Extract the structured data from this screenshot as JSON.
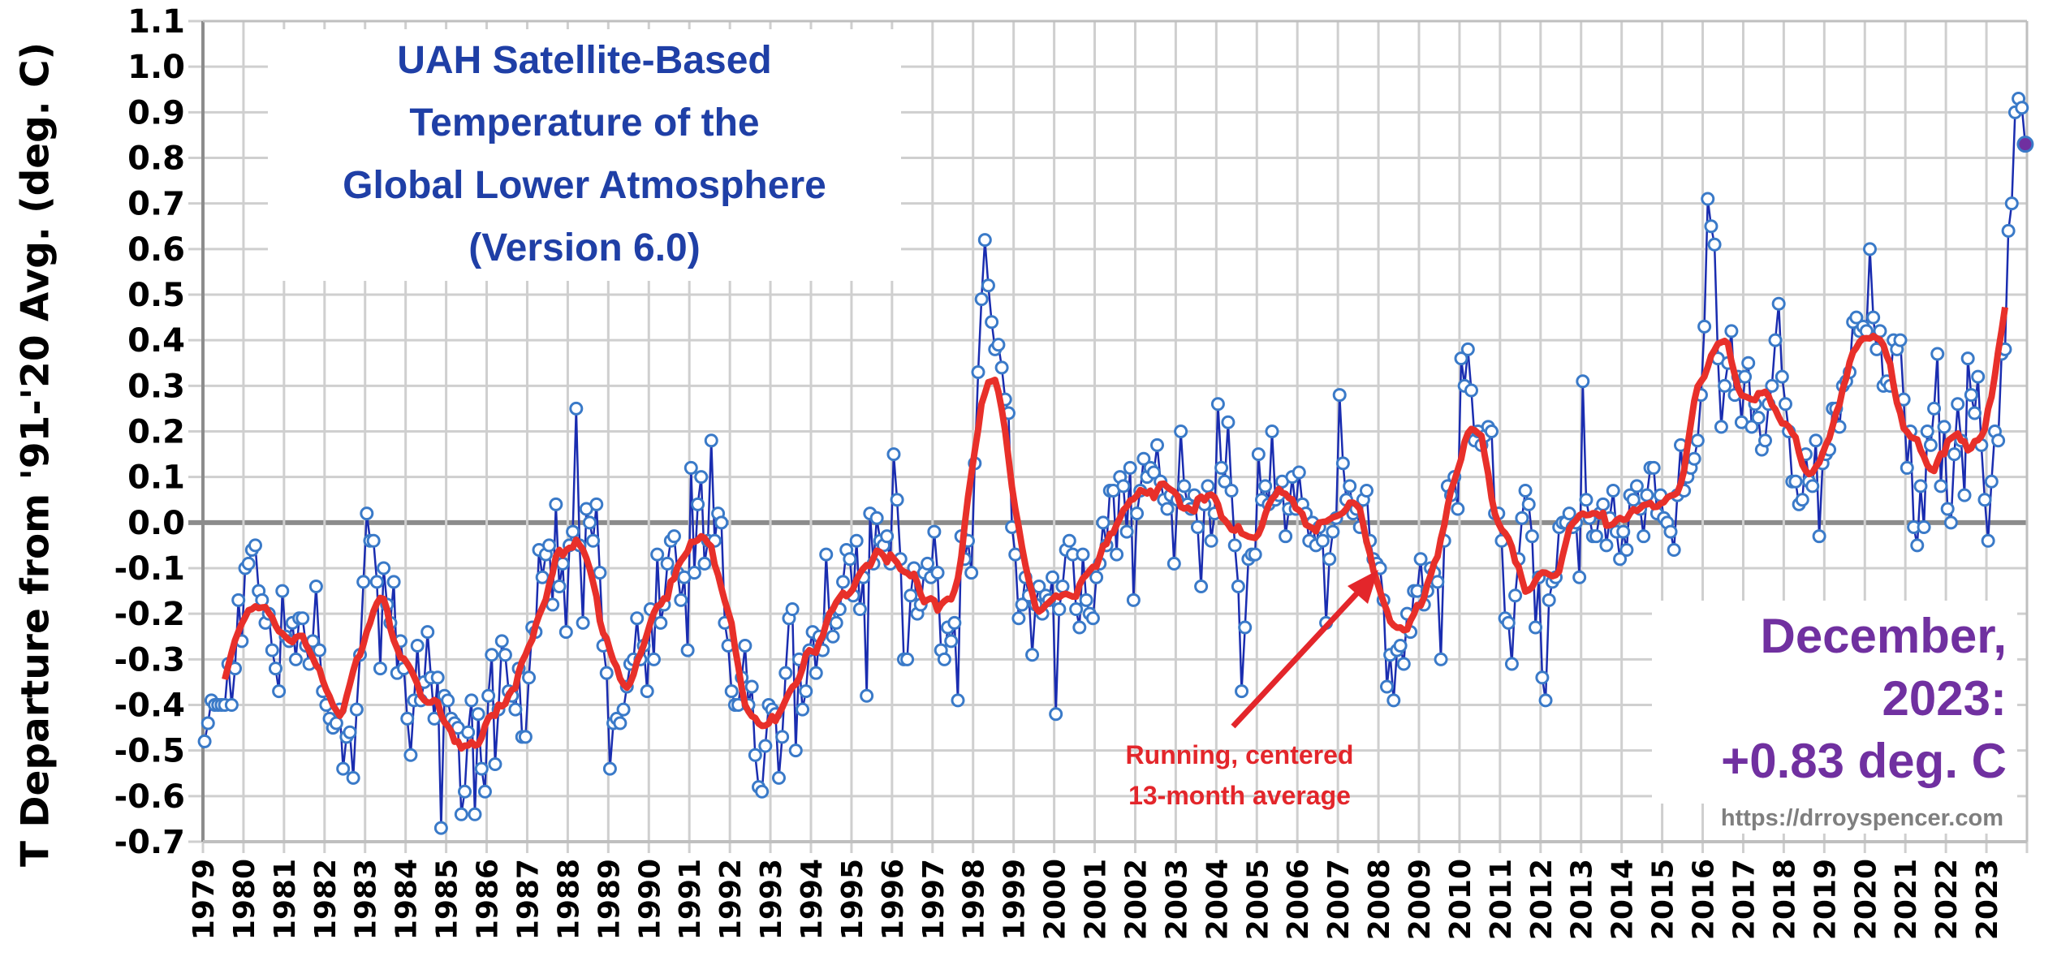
{
  "chart_data": {
    "type": "line",
    "title": [
      "UAH Satellite-Based",
      "Temperature of the",
      "Global Lower Atmosphere",
      "(Version 6.0)"
    ],
    "ylabel": "T Departure from '91-'20 Avg. (deg. C)",
    "xlabel": "",
    "ylim": [
      -0.7,
      1.1
    ],
    "yticks": [
      "1.1",
      "1.0",
      "0.9",
      "0.8",
      "0.7",
      "0.6",
      "0.5",
      "0.4",
      "0.3",
      "0.2",
      "0.1",
      "0.0",
      "-0.1",
      "-0.2",
      "-0.3",
      "-0.4",
      "-0.5",
      "-0.6",
      "-0.7"
    ],
    "x_ticks": [
      "1979",
      "1980",
      "1981",
      "1982",
      "1983",
      "1984",
      "1985",
      "1986",
      "1987",
      "1988",
      "1989",
      "1990",
      "1991",
      "1992",
      "1993",
      "1994",
      "1995",
      "1996",
      "1997",
      "1998",
      "1999",
      "2000",
      "2001",
      "2002",
      "2003",
      "2004",
      "2005",
      "2006",
      "2007",
      "2008",
      "2009",
      "2010",
      "2011",
      "2012",
      "2013",
      "2014",
      "2015",
      "2016",
      "2017",
      "2018",
      "2019",
      "2020",
      "2021",
      "2022",
      "2023"
    ],
    "grid": true,
    "x_start": "1979-01",
    "x_end": "2023-12",
    "x_step": "month",
    "series": [
      {
        "kind": "monthly",
        "color": "#1a2db0",
        "marker_color": "#3a7ac8",
        "last_marker_color": "#7030a0",
        "values": [
          -0.48,
          -0.44,
          -0.39,
          -0.4,
          -0.4,
          -0.4,
          -0.4,
          -0.31,
          -0.4,
          -0.32,
          -0.17,
          -0.26,
          -0.1,
          -0.09,
          -0.06,
          -0.05,
          -0.15,
          -0.17,
          -0.22,
          -0.2,
          -0.28,
          -0.32,
          -0.37,
          -0.15,
          -0.25,
          -0.26,
          -0.22,
          -0.3,
          -0.21,
          -0.21,
          -0.27,
          -0.31,
          -0.26,
          -0.14,
          -0.28,
          -0.37,
          -0.4,
          -0.43,
          -0.45,
          -0.44,
          -0.41,
          -0.54,
          -0.47,
          -0.46,
          -0.56,
          -0.41,
          -0.29,
          -0.13,
          0.02,
          -0.04,
          -0.04,
          -0.13,
          -0.32,
          -0.1,
          -0.18,
          -0.22,
          -0.13,
          -0.33,
          -0.26,
          -0.32,
          -0.43,
          -0.51,
          -0.39,
          -0.27,
          -0.39,
          -0.35,
          -0.24,
          -0.34,
          -0.43,
          -0.34,
          -0.67,
          -0.38,
          -0.39,
          -0.43,
          -0.44,
          -0.45,
          -0.64,
          -0.59,
          -0.46,
          -0.39,
          -0.64,
          -0.42,
          -0.54,
          -0.59,
          -0.38,
          -0.29,
          -0.53,
          -0.41,
          -0.26,
          -0.29,
          -0.37,
          -0.38,
          -0.41,
          -0.32,
          -0.47,
          -0.47,
          -0.34,
          -0.23,
          -0.24,
          -0.06,
          -0.12,
          -0.07,
          -0.05,
          -0.18,
          0.04,
          -0.14,
          -0.09,
          -0.24,
          -0.05,
          -0.02,
          0.25,
          -0.05,
          -0.22,
          0.03,
          0.0,
          -0.04,
          0.04,
          -0.11,
          -0.27,
          -0.33,
          -0.54,
          -0.44,
          -0.43,
          -0.44,
          -0.41,
          -0.36,
          -0.31,
          -0.3,
          -0.21,
          -0.3,
          -0.27,
          -0.37,
          -0.19,
          -0.3,
          -0.07,
          -0.22,
          -0.18,
          -0.09,
          -0.04,
          -0.03,
          -0.11,
          -0.17,
          -0.12,
          -0.28,
          0.12,
          -0.11,
          0.04,
          0.1,
          -0.09,
          -0.04,
          0.18,
          -0.04,
          0.02,
          0.0,
          -0.22,
          -0.27,
          -0.37,
          -0.4,
          -0.4,
          -0.34,
          -0.27,
          -0.4,
          -0.36,
          -0.51,
          -0.58,
          -0.59,
          -0.49,
          -0.4,
          -0.41,
          -0.42,
          -0.56,
          -0.47,
          -0.33,
          -0.21,
          -0.19,
          -0.5,
          -0.3,
          -0.41,
          -0.37,
          -0.28,
          -0.24,
          -0.33,
          -0.25,
          -0.28,
          -0.07,
          -0.21,
          -0.25,
          -0.22,
          -0.19,
          -0.13,
          -0.06,
          -0.08,
          -0.16,
          -0.04,
          -0.19,
          -0.12,
          -0.38,
          0.02,
          -0.09,
          0.01,
          -0.04,
          -0.05,
          -0.03,
          -0.09,
          0.15,
          0.05,
          -0.08,
          -0.3,
          -0.3,
          -0.16,
          -0.1,
          -0.2,
          -0.18,
          -0.11,
          -0.09,
          -0.12,
          -0.02,
          -0.11,
          -0.28,
          -0.3,
          -0.23,
          -0.26,
          -0.22,
          -0.39,
          -0.03,
          -0.08,
          -0.04,
          -0.11,
          0.13,
          0.33,
          0.49,
          0.62,
          0.52,
          0.44,
          0.38,
          0.39,
          0.34,
          0.27,
          0.24,
          -0.01,
          -0.07,
          -0.21,
          -0.18,
          -0.12,
          -0.16,
          -0.29,
          -0.18,
          -0.14,
          -0.2,
          -0.16,
          -0.17,
          -0.12,
          -0.42,
          -0.19,
          -0.14,
          -0.06,
          -0.04,
          -0.07,
          -0.19,
          -0.23,
          -0.07,
          -0.17,
          -0.2,
          -0.21,
          -0.12,
          -0.09,
          0.0,
          -0.05,
          0.07,
          0.07,
          -0.07,
          0.1,
          0.08,
          -0.02,
          0.12,
          -0.17,
          0.02,
          0.07,
          0.14,
          0.1,
          0.12,
          0.11,
          0.17,
          0.09,
          0.05,
          0.03,
          0.06,
          -0.09,
          0.05,
          0.2,
          0.08,
          0.04,
          0.03,
          0.06,
          -0.01,
          -0.14,
          0.04,
          0.08,
          -0.04,
          0.02,
          0.26,
          0.12,
          0.09,
          0.22,
          0.07,
          -0.05,
          -0.14,
          -0.37,
          -0.23,
          -0.08,
          -0.07,
          -0.07,
          0.15,
          0.05,
          0.08,
          0.04,
          0.2,
          0.05,
          0.06,
          0.09,
          -0.03,
          0.03,
          0.1,
          0.03,
          0.11,
          0.04,
          0.02,
          -0.04,
          0.0,
          -0.05,
          -0.01,
          -0.04,
          -0.22,
          -0.08,
          -0.02,
          0.01,
          0.28,
          0.13,
          0.05,
          0.08,
          0.02,
          0.03,
          -0.01,
          0.05,
          0.07,
          -0.04,
          -0.08,
          -0.09,
          -0.1,
          -0.17,
          -0.36,
          -0.29,
          -0.39,
          -0.28,
          -0.27,
          -0.31,
          -0.2,
          -0.24,
          -0.15,
          -0.15,
          -0.08,
          -0.18,
          -0.15,
          -0.1,
          -0.11,
          -0.13,
          -0.3,
          -0.04,
          0.08,
          0.06,
          0.1,
          0.03,
          0.36,
          0.3,
          0.38,
          0.29,
          0.18,
          0.2,
          0.17,
          0.19,
          0.21,
          0.2,
          0.02,
          0.02,
          -0.04,
          -0.21,
          -0.22,
          -0.31,
          -0.16,
          -0.08,
          0.01,
          0.07,
          0.04,
          -0.03,
          -0.23,
          -0.12,
          -0.34,
          -0.39,
          -0.17,
          -0.13,
          -0.12,
          -0.01,
          0.0,
          0.0,
          0.02,
          -0.01,
          0.0,
          -0.12,
          0.31,
          0.05,
          0.01,
          -0.03,
          -0.03,
          0.02,
          0.04,
          -0.05,
          0.01,
          0.07,
          -0.02,
          -0.08,
          -0.02,
          -0.06,
          0.06,
          0.05,
          0.08,
          0.03,
          -0.03,
          0.06,
          0.12,
          0.12,
          0.02,
          0.06,
          0.01,
          0.0,
          -0.02,
          -0.06,
          0.06,
          0.17,
          0.07,
          0.1,
          0.12,
          0.14,
          0.18,
          0.28,
          0.43,
          0.71,
          0.65,
          0.61,
          0.36,
          0.21,
          0.3,
          0.35,
          0.42,
          0.28,
          0.32,
          0.22,
          0.32,
          0.35,
          0.21,
          0.26,
          0.23,
          0.16,
          0.18,
          0.26,
          0.3,
          0.4,
          0.48,
          0.32,
          0.26,
          0.2,
          0.09,
          0.09,
          0.04,
          0.05,
          0.15,
          0.09,
          0.08,
          0.18,
          -0.03,
          0.13,
          0.15,
          0.16,
          0.25,
          0.25,
          0.21,
          0.3,
          0.31,
          0.33,
          0.44,
          0.45,
          0.42,
          0.43,
          0.42,
          0.6,
          0.45,
          0.38,
          0.42,
          0.3,
          0.31,
          0.3,
          0.4,
          0.38,
          0.4,
          0.27,
          0.12,
          0.2,
          -0.01,
          -0.05,
          0.08,
          -0.01,
          0.2,
          0.17,
          0.25,
          0.37,
          0.08,
          0.21,
          0.03,
          0.0,
          0.15,
          0.26,
          0.18,
          0.06,
          0.36,
          0.28,
          0.24,
          0.32,
          0.17,
          0.05,
          -0.04,
          0.09,
          0.2,
          0.18,
          0.37,
          0.38,
          0.64,
          0.7,
          0.9,
          0.93,
          0.91,
          0.83
        ]
      },
      {
        "kind": "running_mean",
        "window_months": 13,
        "centered": true,
        "color": "#e8302a"
      }
    ],
    "annotations": {
      "running_avg_label": [
        "Running, centered",
        "13-month average"
      ],
      "latest": [
        "December,",
        "2023:",
        "+0.83 deg. C"
      ],
      "url": "https://drroyspencer.com"
    },
    "colors": {
      "title": "#1f3fa6",
      "latest": "#7030a0",
      "running_avg": "#e3262b",
      "url": "#7f7f7f"
    }
  }
}
